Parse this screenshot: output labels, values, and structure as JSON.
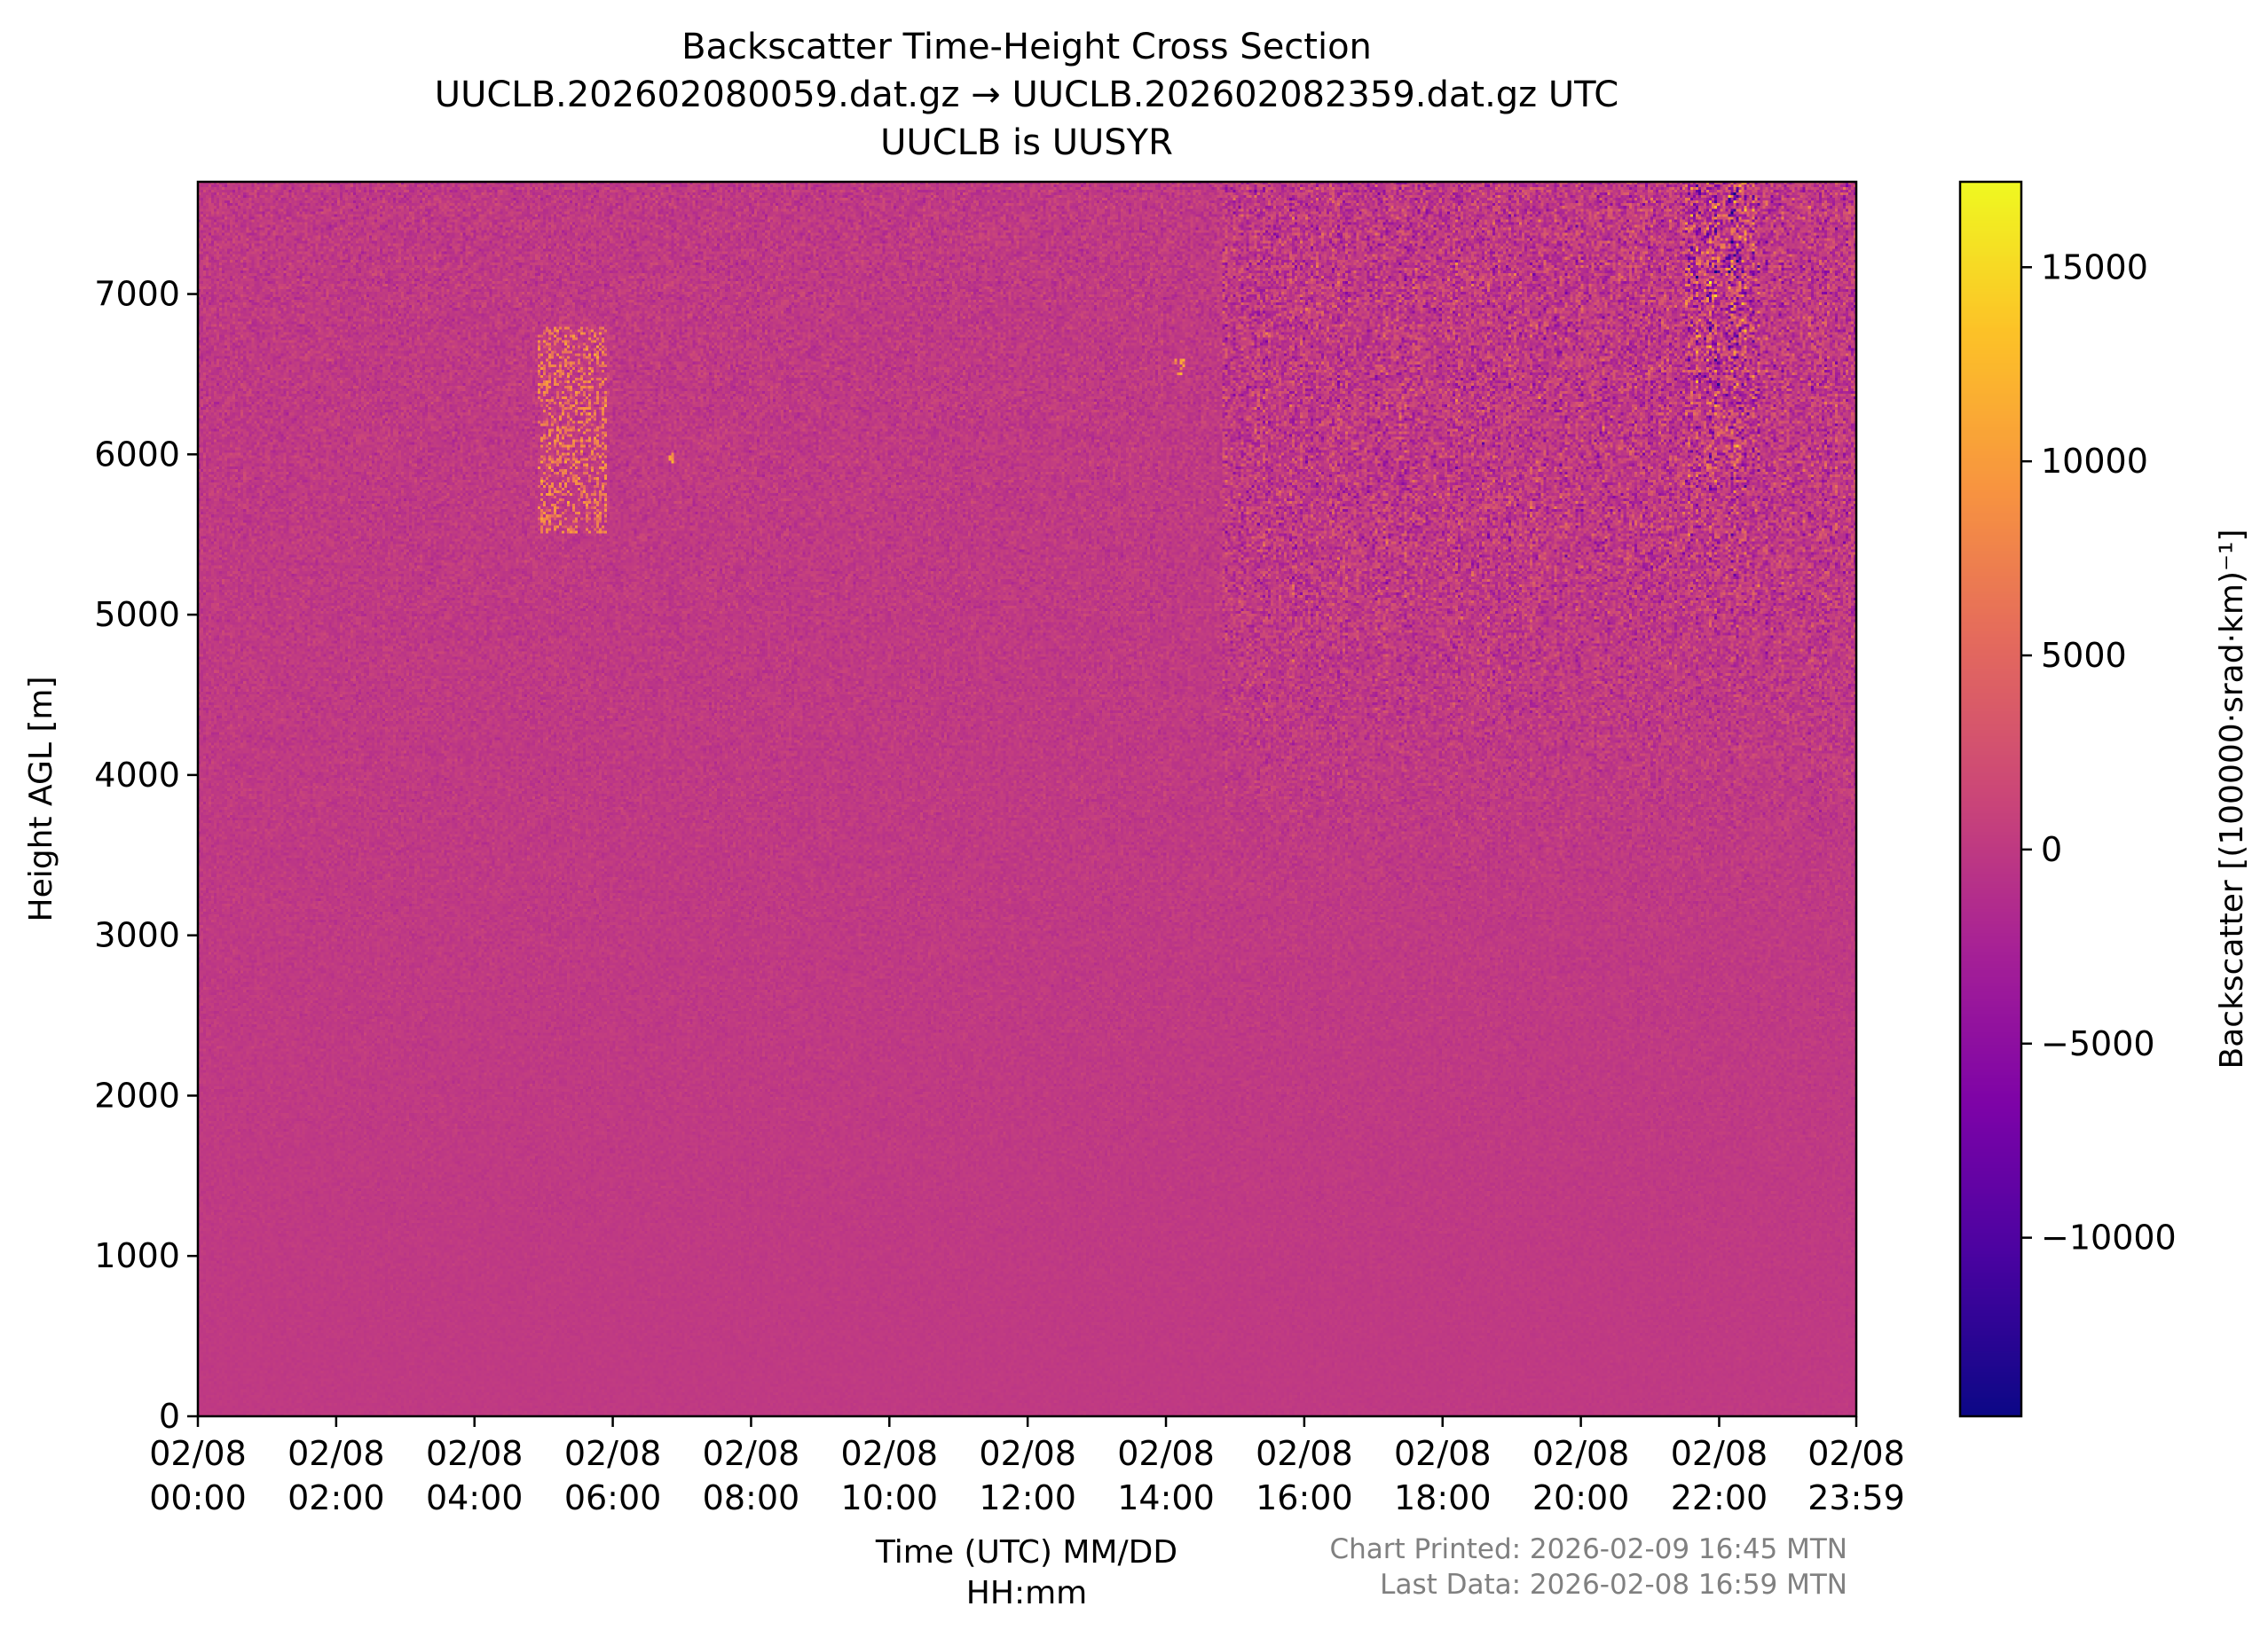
{
  "chart_data": {
    "type": "heatmap",
    "title": "Backscatter Time-Height Cross Section",
    "subtitle_lines": [
      "UUCLB.202602080059.dat.gz → UUCLB.202602082359.dat.gz UTC",
      "UUCLB is UUSYR"
    ],
    "xlabel_lines": [
      "Time (UTC) MM/DD",
      "HH:mm"
    ],
    "ylabel": "Height AGL [m]",
    "colorbar_label": "Backscatter [(100000·srad·km)⁻¹]",
    "colormap": "plasma",
    "x_range": [
      "02/08 00:00",
      "02/08 23:59"
    ],
    "x_ticks": [
      {
        "hour": 0,
        "date": "02/08",
        "time": "00:00"
      },
      {
        "hour": 2,
        "date": "02/08",
        "time": "02:00"
      },
      {
        "hour": 4,
        "date": "02/08",
        "time": "04:00"
      },
      {
        "hour": 6,
        "date": "02/08",
        "time": "06:00"
      },
      {
        "hour": 8,
        "date": "02/08",
        "time": "08:00"
      },
      {
        "hour": 10,
        "date": "02/08",
        "time": "10:00"
      },
      {
        "hour": 12,
        "date": "02/08",
        "time": "12:00"
      },
      {
        "hour": 14,
        "date": "02/08",
        "time": "14:00"
      },
      {
        "hour": 16,
        "date": "02/08",
        "time": "16:00"
      },
      {
        "hour": 18,
        "date": "02/08",
        "time": "18:00"
      },
      {
        "hour": 20,
        "date": "02/08",
        "time": "20:00"
      },
      {
        "hour": 22,
        "date": "02/08",
        "time": "22:00"
      },
      {
        "hour": 23.983,
        "date": "02/08",
        "time": "23:59"
      }
    ],
    "ylim": [
      0,
      7700
    ],
    "y_ticks": [
      0,
      1000,
      2000,
      3000,
      4000,
      5000,
      6000,
      7000
    ],
    "y_tick_labels": [
      "0",
      "1000",
      "2000",
      "3000",
      "4000",
      "5000",
      "6000",
      "7000"
    ],
    "clim": [
      -14600,
      17200
    ],
    "colorbar_ticks": [
      -10000,
      -5000,
      0,
      5000,
      10000,
      15000
    ],
    "colorbar_tick_labels": [
      "−10000",
      "−5000",
      "0",
      "5000",
      "10000",
      "15000"
    ],
    "background_value": 0,
    "features": [
      {
        "kind": "echo",
        "hour_start": 4.9,
        "hour_end": 5.9,
        "height_min": 5500,
        "height_max": 6800,
        "value": 9000
      },
      {
        "kind": "echo",
        "hour_start": 6.8,
        "hour_end": 6.9,
        "height_min": 5950,
        "height_max": 6050,
        "value": 12000
      },
      {
        "kind": "echo",
        "hour_start": 14.1,
        "hour_end": 14.3,
        "height_min": 6500,
        "height_max": 6600,
        "value": 12000
      },
      {
        "kind": "noise",
        "hour_start": 14.8,
        "hour_end": 23.98,
        "height_min": 3000,
        "height_max": 7700,
        "value_spread": 4000
      },
      {
        "kind": "noise",
        "hour_start": 21.5,
        "hour_end": 22.6,
        "height_min": 4500,
        "height_max": 7700,
        "value_spread": 8000
      }
    ]
  },
  "footer": {
    "printed": "Chart Printed: 2026-02-09 16:45 MTN",
    "last_data": "Last Data: 2026-02-08 16:59 MTN"
  },
  "colors": {
    "gray_text": "#808080",
    "axis": "#000000"
  }
}
